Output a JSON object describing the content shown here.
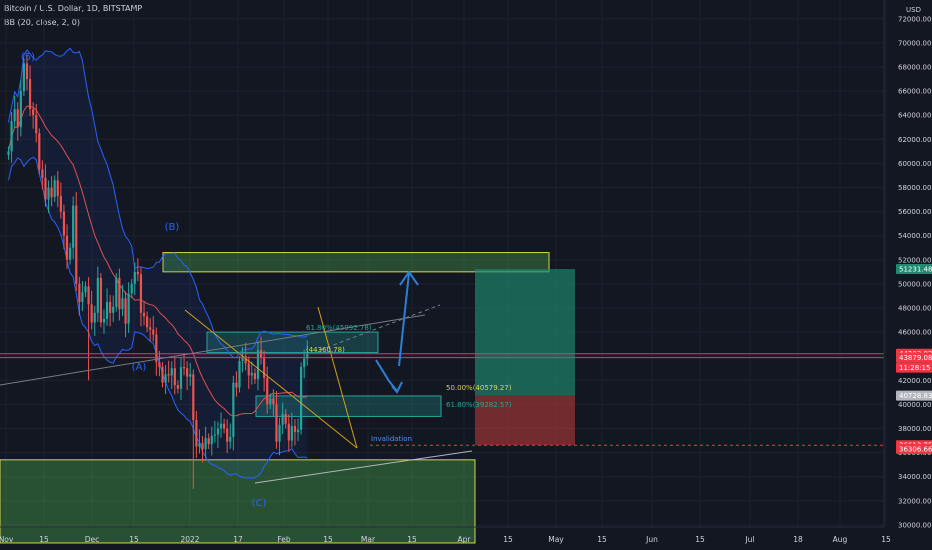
{
  "header": {
    "symbol_line": "Bitcoin / U.S. Dollar, 1D, BITSTAMP",
    "indicator_line": "BB (20, close, 2, 0)",
    "currency": "USD"
  },
  "colors": {
    "background": "#131722",
    "grid": "#1e222d",
    "up_candle": "#26a69a",
    "down_candle": "#ef5350",
    "bb_band": "#2962ff",
    "bb_basis": "#e05050",
    "target_zone": "#1f8a70",
    "stop_zone": "#b33a3a",
    "support_zone": "#4caf50",
    "resistance_zone": "#d4d84a",
    "fib_zone": "#26a69a",
    "arrow": "#2d7ed6"
  },
  "chart_data": {
    "type": "candlestick",
    "title": "Bitcoin / U.S. Dollar, 1D, BITSTAMP",
    "xlabel": "",
    "ylabel": "USD",
    "ylim": [
      29500,
      72800
    ],
    "grid": true,
    "y_ticks": [
      30000,
      32000,
      34000,
      36000,
      38000,
      40000,
      42000,
      44000,
      46000,
      48000,
      50000,
      52000,
      54000,
      56000,
      58000,
      60000,
      62000,
      64000,
      66000,
      68000,
      70000,
      72000
    ],
    "y_tick_labels": [
      "30000.00",
      "32000.00",
      "34000.00",
      "36000.00",
      "38000.00",
      "40000.00",
      "42000.00",
      "44000.00",
      "46000.00",
      "48000.00",
      "50000.00",
      "52000.00",
      "54000.00",
      "56000.00",
      "58000.00",
      "60000.00",
      "62000.00",
      "64000.00",
      "66000.00",
      "68000.00",
      "70000.00",
      "72000.00"
    ],
    "x_tick_labels": [
      "Nov",
      "15",
      "Dec",
      "15",
      "2022",
      "17",
      "Feb",
      "15",
      "Mar",
      "15",
      "Apr",
      "15",
      "May",
      "15",
      "Jun",
      "15",
      "Jul",
      "18",
      "Aug",
      "15"
    ],
    "candles": {
      "start_date": "2021-11-01",
      "end_date": "2022-03-01",
      "pattern_closes": [
        61000,
        63500,
        64500,
        63000,
        66000,
        68300,
        67000,
        64500,
        64000,
        62500,
        59500,
        58800,
        57000,
        58000,
        57200,
        58600,
        57300,
        56000,
        54000,
        52000,
        53000,
        56500,
        50000,
        48500,
        49300,
        49800,
        48300,
        46800,
        47600,
        50500,
        46800,
        47100,
        48500,
        47600,
        48100,
        50500,
        47900,
        48800,
        46700,
        49200,
        50000,
        51000,
        50800,
        47600,
        47300,
        46400,
        46200,
        45800,
        43500,
        43100,
        41800,
        42500,
        42400,
        43000,
        41600,
        41300,
        43100,
        43000,
        42300,
        42500,
        38700,
        36500,
        36800,
        36300,
        37200,
        36700,
        37400,
        37500,
        38000,
        38400,
        38000,
        36900,
        37300,
        41800,
        41400,
        43600,
        44000,
        43400,
        42400,
        42600,
        42100,
        44500,
        43900,
        42200,
        40000,
        40500,
        40000,
        36900,
        38300,
        39200,
        38400,
        37000,
        38200,
        37700,
        37900,
        43100,
        43800,
        44200
      ]
    },
    "series": [
      {
        "name": "BB upper"
      },
      {
        "name": "BB basis"
      },
      {
        "name": "BB lower"
      }
    ],
    "price_labels": [
      {
        "text": "51231.48",
        "value": 51231.48,
        "color": "#1f8a70"
      },
      {
        "text": "44203.82",
        "value": 44203.82,
        "color": "#f23645"
      },
      {
        "text": "43879.08",
        "value": 43879.08,
        "color": "#f23645"
      },
      {
        "text": "11:28:15",
        "value": 43050,
        "color": "#f23645"
      },
      {
        "text": "40728.83",
        "value": 40728.83,
        "color": "#b2b5be"
      },
      {
        "text": "36613.75",
        "value": 36613.75,
        "color": "#f23645"
      },
      {
        "text": "36306.66",
        "value": 36306.66,
        "color": "#f23645"
      }
    ],
    "fib_labels": [
      {
        "text": "61.80%(45992.78)",
        "value": 45992.78,
        "color": "#26a69a"
      },
      {
        "text": "(44360.78)",
        "value": 44360.78,
        "color": "#d4d84a"
      },
      {
        "text": "50.00%(40579.27)",
        "value": 40579.27,
        "color": "#d4d84a"
      },
      {
        "text": "61.80%(39282.57)",
        "value": 39282.57,
        "color": "#26a69a"
      }
    ],
    "zones": [
      {
        "name": "resistance",
        "from": 51000,
        "to": 52600
      },
      {
        "name": "fib-upper",
        "from": 44300,
        "to": 46000
      },
      {
        "name": "fib-lower",
        "from": 39000,
        "to": 40700
      },
      {
        "name": "support",
        "from": 28500,
        "to": 35400
      },
      {
        "name": "target",
        "from": 40728.83,
        "to": 51231.48
      },
      {
        "name": "stop",
        "from": 36613.75,
        "to": 40728.83
      }
    ],
    "wave_labels": [
      "(5)",
      "(B)",
      "(A)",
      "(C)"
    ],
    "annotations": [
      "Invalidation"
    ]
  }
}
